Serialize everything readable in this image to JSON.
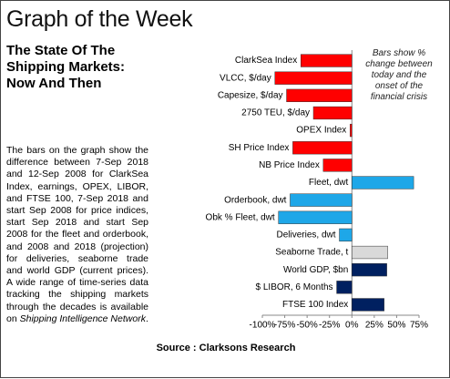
{
  "header": {
    "title": "Graph of the Week"
  },
  "article": {
    "heading": "The State Of The Shipping Markets: Now And Then",
    "body": "The bars on the graph show the difference between 7-Sep 2018 and 12-Sep 2008 for ClarkSea Index, earnings, OPEX, LIBOR, and FTSE 100, 7-Sep 2018 and start Sep 2008 for price indices, start Sep 2018 and start Sep 2008 for the fleet and orderbook, and 2008 and 2018 (projection) for deliveries, seaborne trade and world GDP (current prices). A wide range of time-series data tracking the shipping markets through the decades is available on",
    "body_italic": "Shipping Intelligence Network",
    "body_end": "."
  },
  "chart_data": {
    "type": "bar",
    "orientation": "horizontal",
    "annotation": "Bars show % change between today and the onset of the financial crisis",
    "categories": [
      "ClarkSea Index",
      "VLCC, $/day",
      "Capesize, $/day",
      "2750 TEU, $/day",
      "OPEX Index",
      "SH Price Index",
      "NB Price Index",
      "Fleet, dwt",
      "Orderbook, dwt",
      "Obk % Fleet, dwt",
      "Deliveries, dwt",
      "Seaborne Trade, t",
      "World GDP, $bn",
      "$ LIBOR, 6 Months",
      "FTSE 100 Index"
    ],
    "series": [
      {
        "values": [
          -57,
          -86,
          -73,
          -43,
          -2,
          -66,
          -32,
          69,
          -69,
          -82,
          -14,
          40,
          39,
          -17,
          36
        ],
        "colors": [
          "#ff0000",
          "#ff0000",
          "#ff0000",
          "#ff0000",
          "#ff0000",
          "#ff0000",
          "#ff0000",
          "#1ea7e8",
          "#1ea7e8",
          "#1ea7e8",
          "#1ea7e8",
          "#d9d9d9",
          "#002060",
          "#002060",
          "#002060"
        ]
      }
    ],
    "xlim": [
      -100,
      75
    ],
    "xticks": [
      {
        "value": -100,
        "label": "-100%"
      },
      {
        "value": -75,
        "label": "-75%"
      },
      {
        "value": -50,
        "label": "-50%"
      },
      {
        "value": -25,
        "label": "-25%"
      },
      {
        "value": 0,
        "label": "0%"
      },
      {
        "value": 25,
        "label": "25%"
      },
      {
        "value": 50,
        "label": "50%"
      },
      {
        "value": 75,
        "label": "75%"
      }
    ]
  },
  "footer": {
    "source": "Source : Clarksons Research"
  }
}
